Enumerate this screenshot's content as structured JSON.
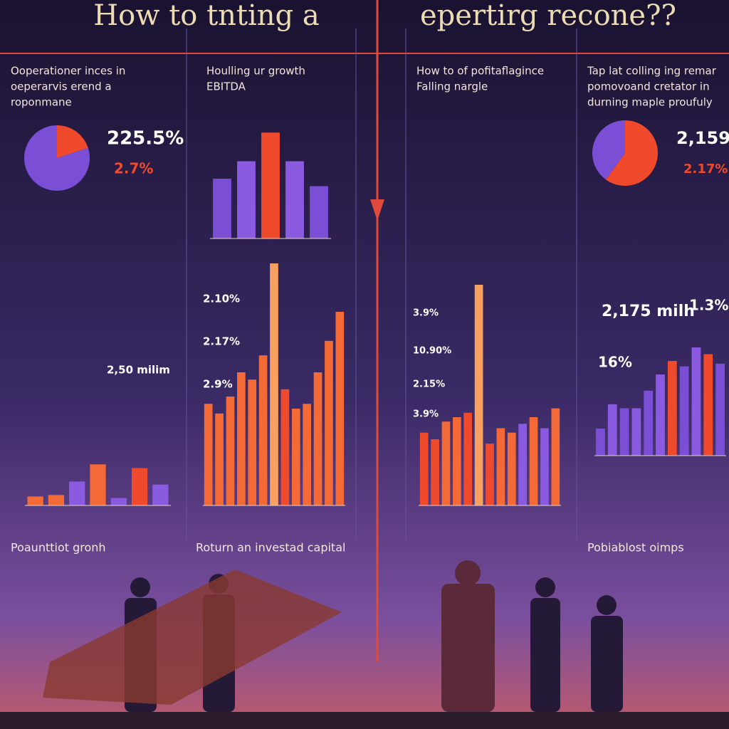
{
  "title_left": "How to tnting a",
  "title_right": "epertirg recone??",
  "panels": [
    {
      "heading": [
        "Ooperationer inces in",
        "oeperarvis erend a",
        "roponmane"
      ],
      "stats": [
        "225.5%",
        "2.7%",
        "2,50 milim"
      ],
      "pie": [
        20,
        80
      ],
      "pie_colors": [
        "#f04a2c",
        "#7a4fd6"
      ],
      "bars": [
        12,
        14,
        32,
        55,
        10,
        50,
        28
      ],
      "bar_colors": [
        "#f46a36",
        "#f46a36",
        "#8a5ae0",
        "#f46a36",
        "#8a5ae0",
        "#f04a2c",
        "#8a5ae0"
      ],
      "caption": "Poaunttiot gronh"
    },
    {
      "heading": [
        "Houlling ur growth",
        "EBITDA"
      ],
      "stats": [
        "2.10%",
        "2.17%",
        "2.9%"
      ],
      "top_bars": [
        48,
        62,
        85,
        62,
        42
      ],
      "top_colors": [
        "#7a4fd6",
        "#8a5ae0",
        "#f04a2c",
        "#8a5ae0",
        "#7a4fd6"
      ],
      "bars": [
        42,
        38,
        45,
        55,
        52,
        62,
        100,
        48,
        40,
        42,
        55,
        68,
        80
      ],
      "bar_colors": [
        "#f46a36",
        "#f46a36",
        "#f46a36",
        "#f46a36",
        "#f46a36",
        "#f46a36",
        "#f8a060",
        "#f04a2c",
        "#f46a36",
        "#f46a36",
        "#f46a36",
        "#f46a36",
        "#f46a36"
      ],
      "caption": "Roturn an investad capital"
    },
    {
      "heading": [
        "How to of pofitaflagince",
        "Falling nargle"
      ],
      "stats": [
        "3.9%",
        "10.90%",
        "2.15%",
        "3.9%"
      ],
      "bars": [
        33,
        30,
        38,
        40,
        42,
        100,
        28,
        35,
        33,
        37,
        40,
        35,
        44
      ],
      "bar_colors": [
        "#f04a2c",
        "#f04a2c",
        "#f46a36",
        "#f46a36",
        "#f04a2c",
        "#f8a060",
        "#f04a2c",
        "#f46a36",
        "#f46a36",
        "#8a5ae0",
        "#f46a36",
        "#8a5ae0",
        "#f46a36"
      ]
    },
    {
      "heading": [
        "Tap lat colling ing remar",
        "pomovoand cretator in",
        "durning maple proufuly"
      ],
      "stats": [
        "2,159",
        "2.17%",
        "2,175 milh",
        "1.3%",
        "16%"
      ],
      "pie": [
        60,
        40
      ],
      "pie_colors": [
        "#f04a2c",
        "#7a4fd6"
      ],
      "bars": [
        20,
        38,
        35,
        35,
        48,
        60,
        70,
        66,
        80,
        75,
        68
      ],
      "bar_colors": [
        "#7a4fd6",
        "#8a5ae0",
        "#7a4fd6",
        "#8a5ae0",
        "#7a4fd6",
        "#8a5ae0",
        "#f04a2c",
        "#7a4fd6",
        "#8a5ae0",
        "#f04a2c",
        "#7a4fd6"
      ],
      "caption": "Pobiablost oimps"
    }
  ]
}
